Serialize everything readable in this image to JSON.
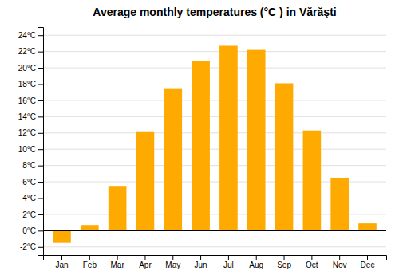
{
  "chart_data": {
    "type": "bar",
    "title": "Average monthly temperatures (°C ) in Vărăşti",
    "categories": [
      "Jan",
      "Feb",
      "Mar",
      "Apr",
      "May",
      "Jun",
      "Jul",
      "Aug",
      "Sep",
      "Oct",
      "Nov",
      "Dec"
    ],
    "values": [
      -1.5,
      0.7,
      5.5,
      12.2,
      17.4,
      20.8,
      22.7,
      22.2,
      18.1,
      12.3,
      6.5,
      0.9
    ],
    "color": "#FFAA00",
    "ylim": [
      -3,
      25
    ],
    "yticks": [
      {
        "value": -2,
        "label": "-2°C"
      },
      {
        "value": 0,
        "label": "0°C"
      },
      {
        "value": 2,
        "label": "2°C"
      },
      {
        "value": 4,
        "label": "4°C"
      },
      {
        "value": 6,
        "label": "6°C"
      },
      {
        "value": 8,
        "label": "8°C"
      },
      {
        "value": 10,
        "label": "10°C"
      },
      {
        "value": 12,
        "label": "12°C"
      },
      {
        "value": 14,
        "label": "14°C"
      },
      {
        "value": 16,
        "label": "16°C"
      },
      {
        "value": 18,
        "label": "18°C"
      },
      {
        "value": 20,
        "label": "20°C"
      },
      {
        "value": 22,
        "label": "22°C"
      },
      {
        "value": 24,
        "label": "24°C"
      }
    ],
    "grid": true
  }
}
